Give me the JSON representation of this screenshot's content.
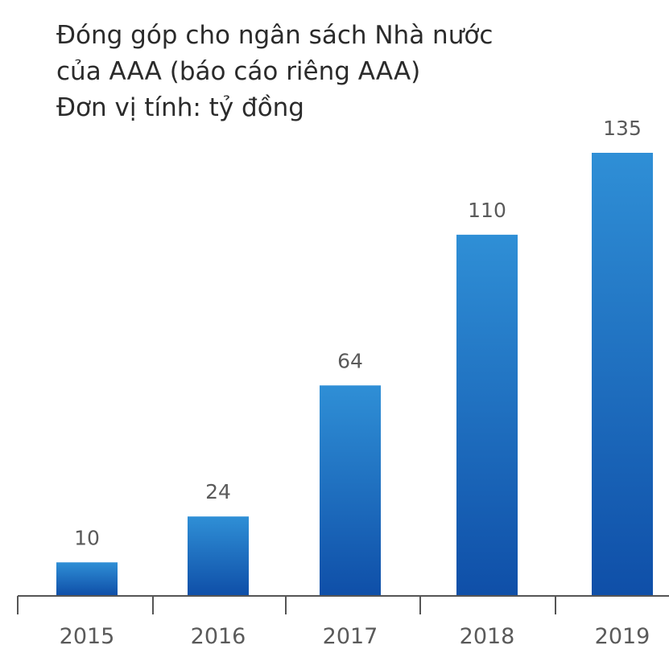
{
  "title": {
    "line1": "Đóng góp cho ngân sách Nhà nước",
    "line2": "của AAA (báo cáo riêng AAA)",
    "line3": "Đơn vị tính: tỷ đồng"
  },
  "colors": {
    "bar_top": "#2f8fd6",
    "bar_bottom": "#0f4fa8",
    "axis": "#555555",
    "text": "#2b2b2b"
  },
  "chart_data": {
    "type": "bar",
    "title": "Đóng góp cho ngân sách Nhà nước của AAA (báo cáo riêng AAA)",
    "subtitle": "Đơn vị tính: tỷ đồng",
    "categories": [
      "2015",
      "2016",
      "2017",
      "2018",
      "2019"
    ],
    "values": [
      10,
      24,
      64,
      110,
      135
    ],
    "data_labels": [
      "10",
      "24",
      "64",
      "110",
      "135"
    ],
    "xlabel": "",
    "ylabel": "",
    "ylim": [
      0,
      135
    ],
    "grid": false,
    "legend": "none"
  }
}
